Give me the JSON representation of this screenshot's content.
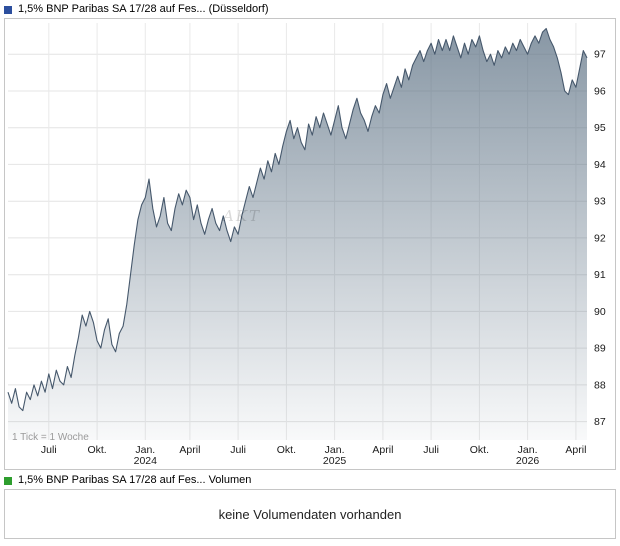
{
  "price_chart": {
    "title": "1,5% BNP Paribas SA 17/28 auf Fes... (Düsseldorf)",
    "legend_color": "#2c4f9e",
    "tick_note": "1 Tick = 1 Woche",
    "watermark": "AKT"
  },
  "volume_section": {
    "title": "1,5% BNP Paribas SA 17/28 auf Fes... Volumen",
    "legend_color": "#2e9e2e",
    "message": "keine Volumendaten vorhanden"
  },
  "chart_data": {
    "type": "area",
    "title": "1,5% BNP Paribas SA 17/28 auf Fes... (Düsseldorf)",
    "series_name": "1,5% BNP Paribas SA 17/28 auf Fes...",
    "x_unit": "week",
    "tick_note": "1 Tick = 1 Woche",
    "grid": true,
    "legend_position": "none",
    "line_color": "#46586c",
    "fill_color": "#5a6f82",
    "ylim": [
      86.5,
      97.85
    ],
    "yticks": [
      87,
      88,
      89,
      90,
      91,
      92,
      93,
      94,
      95,
      96,
      97
    ],
    "xticks": [
      {
        "week": 11,
        "label": "Juli"
      },
      {
        "week": 24,
        "label": "Okt."
      },
      {
        "week": 37,
        "label": "Jan.",
        "year": "2024"
      },
      {
        "week": 49,
        "label": "April"
      },
      {
        "week": 62,
        "label": "Juli"
      },
      {
        "week": 75,
        "label": "Okt."
      },
      {
        "week": 88,
        "label": "Jan.",
        "year": "2025"
      },
      {
        "week": 101,
        "label": "April"
      },
      {
        "week": 114,
        "label": "Juli"
      },
      {
        "week": 127,
        "label": "Okt."
      },
      {
        "week": 140,
        "label": "Jan.",
        "year": "2026"
      },
      {
        "week": 153,
        "label": "April"
      }
    ],
    "values": [
      87.8,
      87.5,
      87.9,
      87.4,
      87.3,
      87.8,
      87.6,
      88.0,
      87.7,
      88.1,
      87.8,
      88.3,
      87.9,
      88.4,
      88.1,
      88.0,
      88.5,
      88.2,
      88.8,
      89.3,
      89.9,
      89.6,
      90.0,
      89.7,
      89.2,
      89.0,
      89.5,
      89.8,
      89.1,
      88.9,
      89.4,
      89.6,
      90.2,
      91.0,
      91.8,
      92.5,
      92.9,
      93.1,
      93.6,
      92.8,
      92.3,
      92.6,
      93.1,
      92.4,
      92.2,
      92.8,
      93.2,
      92.9,
      93.3,
      93.1,
      92.5,
      92.9,
      92.4,
      92.1,
      92.5,
      92.8,
      92.4,
      92.2,
      92.6,
      92.2,
      91.9,
      92.3,
      92.1,
      92.6,
      93.0,
      93.4,
      93.1,
      93.5,
      93.9,
      93.6,
      94.1,
      93.8,
      94.3,
      94.0,
      94.5,
      94.9,
      95.2,
      94.7,
      95.0,
      94.6,
      94.4,
      95.1,
      94.8,
      95.3,
      95.0,
      95.4,
      95.1,
      94.8,
      95.2,
      95.6,
      95.0,
      94.7,
      95.1,
      95.5,
      95.8,
      95.4,
      95.2,
      94.9,
      95.3,
      95.6,
      95.4,
      95.9,
      96.2,
      95.8,
      96.1,
      96.4,
      96.1,
      96.6,
      96.3,
      96.7,
      96.9,
      97.1,
      96.8,
      97.1,
      97.3,
      97.0,
      97.4,
      97.1,
      97.4,
      97.1,
      97.5,
      97.2,
      96.9,
      97.3,
      97.0,
      97.4,
      97.2,
      97.5,
      97.1,
      96.8,
      97.0,
      96.7,
      97.1,
      96.9,
      97.2,
      97.0,
      97.3,
      97.1,
      97.4,
      97.2,
      97.0,
      97.3,
      97.5,
      97.3,
      97.6,
      97.7,
      97.4,
      97.2,
      96.9,
      96.5,
      96.0,
      95.9,
      96.3,
      96.1,
      96.6,
      97.1,
      96.9
    ]
  }
}
